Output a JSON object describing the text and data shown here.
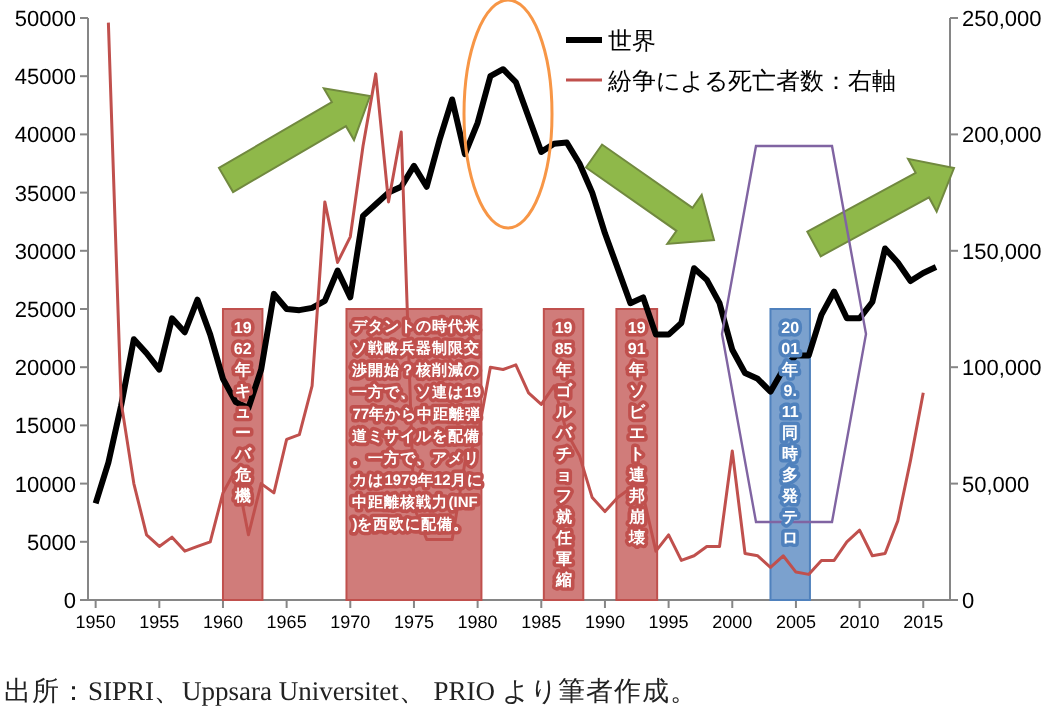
{
  "chart_data": {
    "type": "line",
    "xlim": [
      1949.4,
      2017.1
    ],
    "xticks": [
      1950,
      1955,
      1960,
      1965,
      1970,
      1975,
      1980,
      1985,
      1990,
      1995,
      2000,
      2005,
      2010,
      2015
    ],
    "ylim": [
      0,
      50000
    ],
    "yticks": [
      0,
      5000,
      10000,
      15000,
      20000,
      25000,
      30000,
      35000,
      40000,
      45000,
      50000
    ],
    "y2lim": [
      0,
      250000
    ],
    "y2ticks": [
      0,
      {
        "value": 50000,
        "label": "50,000"
      },
      {
        "value": 100000,
        "label": "100,000"
      },
      {
        "value": 150000,
        "label": "150,000"
      },
      {
        "value": 200000,
        "label": "200,000"
      },
      {
        "value": 250000,
        "label": "250,000"
      }
    ],
    "legend": "top right",
    "series": [
      {
        "name": "世界",
        "color": "#000000",
        "x": [
          1950,
          1951,
          1952,
          1953,
          1954,
          1955,
          1956,
          1957,
          1958,
          1959,
          1960,
          1961,
          1962,
          1963,
          1964,
          1965,
          1966,
          1967,
          1968,
          1969,
          1970,
          1971,
          1972,
          1973,
          1974,
          1975,
          1976,
          1977,
          1978,
          1979,
          1980,
          1981,
          1982,
          1983,
          1984,
          1985,
          1986,
          1987,
          1988,
          1989,
          1990,
          1991,
          1992,
          1993,
          1994,
          1995,
          1996,
          1997,
          1998,
          1999,
          2000,
          2001,
          2002,
          2003,
          2004,
          2005,
          2006,
          2007,
          2008,
          2009,
          2010,
          2011,
          2012,
          2013,
          2014,
          2015,
          2016
        ],
        "values": [
          8300,
          11800,
          16700,
          22400,
          21200,
          19800,
          24200,
          23000,
          25800,
          22800,
          19000,
          17000,
          16500,
          19800,
          26300,
          25000,
          24900,
          25100,
          25700,
          28300,
          26000,
          33000,
          34000,
          35000,
          35500,
          37300,
          35500,
          39500,
          43000,
          38300,
          41000,
          45000,
          45600,
          44500,
          41500,
          38500,
          39200,
          39300,
          37500,
          35000,
          31500,
          28500,
          25500,
          26000,
          22800,
          22800,
          23800,
          28500,
          27500,
          25500,
          21500,
          19500,
          19000,
          17900,
          19800,
          21000,
          21000,
          24500,
          26500,
          24200,
          24200,
          25600,
          30200,
          29000,
          27400,
          28100,
          28600
        ]
      },
      {
        "name": "紛争による死亡者数：右軸",
        "color": "#c0504d",
        "axis": "y2",
        "x": [
          1951,
          1952,
          1953,
          1954,
          1955,
          1956,
          1957,
          1958,
          1959,
          1960,
          1961,
          1962,
          1963,
          1964,
          1965,
          1966,
          1967,
          1968,
          1969,
          1970,
          1971,
          1972,
          1973,
          1974,
          1975,
          1976,
          1977,
          1978,
          1979,
          1980,
          1981,
          1982,
          1983,
          1984,
          1985,
          1986,
          1987,
          1988,
          1989,
          1990,
          1991,
          1992,
          1993,
          1994,
          1995,
          1996,
          1997,
          1998,
          1999,
          2000,
          2001,
          2002,
          2003,
          2004,
          2005,
          2006,
          2007,
          2008,
          2009,
          2010,
          2011,
          2012,
          2013,
          2014,
          2015
        ],
        "values": [
          248000,
          85000,
          50000,
          28000,
          23000,
          27000,
          21000,
          23000,
          25000,
          46000,
          56000,
          28000,
          50000,
          46000,
          69000,
          71000,
          92000,
          171000,
          145000,
          156000,
          195000,
          226000,
          171000,
          201000,
          40000,
          26000,
          26000,
          26000,
          59000,
          70000,
          100000,
          99000,
          101000,
          89000,
          84000,
          92000,
          72000,
          62000,
          44000,
          38000,
          44000,
          48000,
          45000,
          21000,
          28000,
          17000,
          19000,
          23000,
          23000,
          64000,
          20000,
          19000,
          14000,
          19000,
          12000,
          11000,
          17000,
          17000,
          25000,
          30000,
          19000,
          20000,
          34000,
          60000,
          89000
        ]
      }
    ],
    "bands": [
      {
        "axis": "x",
        "from": 1960.0,
        "to": 1963.1,
        "label": "1962年キューバ危機",
        "color": "#c0504d"
      },
      {
        "axis": "x",
        "from": 1969.7,
        "to": 1980.3,
        "label": "デタントの時代米ソ戦略兵器制限交渉開始？核削減の一方で、ソ連は1977年から中距離弾道ミサイルを配備。一方で、アメリカは1979年12月に中距離核戦力(INF)を西欧に配備。",
        "color": "#c0504d"
      },
      {
        "axis": "x",
        "from": 1985.2,
        "to": 1988.3,
        "label": "1985年ゴルバチョフ就任軍縮",
        "color": "#c0504d"
      },
      {
        "axis": "x",
        "from": 1990.9,
        "to": 1994.1,
        "label": "1991年ソビエト連邦崩壊",
        "color": "#c0504d"
      },
      {
        "axis": "x",
        "from": 2003.0,
        "to": 2006.1,
        "label": "2001年9.11同時多発テロ",
        "color": "#4f81bd"
      }
    ],
    "annotations": [
      "出所：SIPRI、Uppsara Universitet、 PRIO より筆者作成。"
    ]
  }
}
